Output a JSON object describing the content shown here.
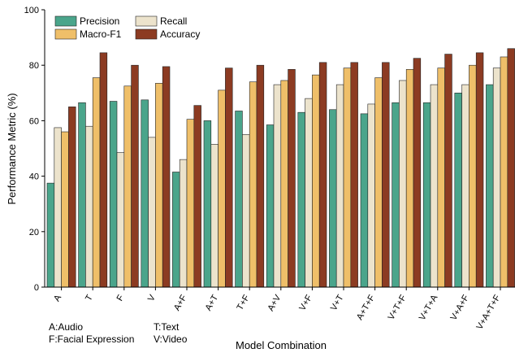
{
  "chart_data": {
    "type": "bar",
    "title": "",
    "xlabel": "Model Combination",
    "ylabel": "Performance Metric (%)",
    "ylim": [
      0,
      100
    ],
    "yticks": [
      0,
      20,
      40,
      60,
      80,
      100
    ],
    "grid": false,
    "legend_position": "top-left",
    "categories": [
      "A",
      "T",
      "F",
      "V",
      "A+F",
      "A+T",
      "T+F",
      "A+V",
      "V+F",
      "V+T",
      "A+T+F",
      "V+T+F",
      "V+T+A",
      "V+A+F",
      "V+A+T+F"
    ],
    "series": [
      {
        "name": "Precision",
        "color": "#4aa58b",
        "values": [
          37.5,
          66.5,
          67,
          67.5,
          41.5,
          60,
          63.5,
          58.5,
          63,
          64,
          62.5,
          66.5,
          66.5,
          70,
          73
        ]
      },
      {
        "name": "Recall",
        "color": "#ece3cc",
        "values": [
          57.5,
          58,
          48.5,
          54,
          46,
          51.5,
          55,
          73,
          68,
          73,
          66,
          74.5,
          73,
          73,
          79
        ]
      },
      {
        "name": "Macro-F1",
        "color": "#efbf69",
        "values": [
          56,
          75.5,
          72.5,
          73.5,
          60.5,
          71,
          74,
          74.5,
          76.5,
          79,
          75.5,
          78.5,
          79,
          80,
          83
        ]
      },
      {
        "name": "Accuracy",
        "color": "#8c3b22",
        "values": [
          65,
          84.5,
          80,
          79.5,
          65.5,
          79,
          80,
          78.5,
          81,
          81,
          81,
          82.5,
          84,
          84.5,
          86
        ]
      }
    ],
    "notes": [
      "A:Audio",
      "T:Text",
      "F:Facial Expression",
      "V:Video"
    ]
  }
}
